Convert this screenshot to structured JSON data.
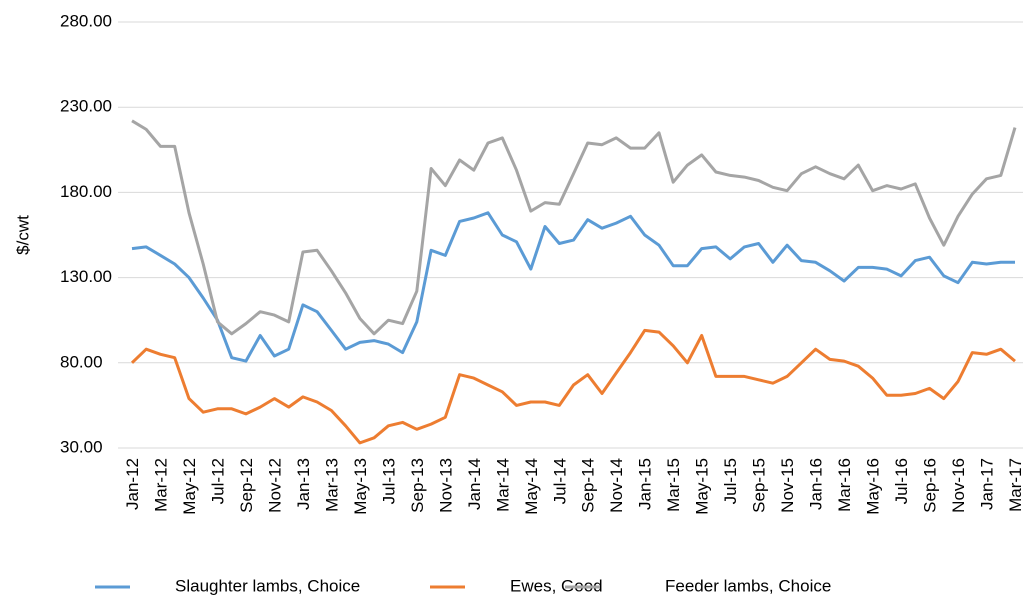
{
  "chart_data": {
    "type": "line",
    "y_label": "$/cwt",
    "categories": [
      "Jan-12",
      null,
      "Mar-12",
      null,
      "May-12",
      null,
      "Jul-12",
      null,
      "Sep-12",
      null,
      "Nov-12",
      null,
      "Jan-13",
      null,
      "Mar-13",
      null,
      "May-13",
      null,
      "Jul-13",
      null,
      "Sep-13",
      null,
      "Nov-13",
      null,
      "Jan-14",
      null,
      "Mar-14",
      null,
      "May-14",
      null,
      "Jul-14",
      null,
      "Sep-14",
      null,
      "Nov-14",
      null,
      "Jan-15",
      null,
      "Mar-15",
      null,
      "May-15",
      null,
      "Jul-15",
      null,
      "Sep-15",
      null,
      "Nov-15",
      null,
      "Jan-16",
      null,
      "Mar-16",
      null,
      "May-16",
      null,
      "Jul-16",
      null,
      "Sep-16",
      null,
      "Nov-16",
      null,
      "Jan-17",
      null,
      "Mar-17"
    ],
    "series": [
      {
        "name": "Slaughter lambs, Choice",
        "color": "#5b9bd5",
        "values": [
          147,
          148,
          143,
          138,
          130,
          118,
          105,
          83,
          81,
          96,
          84,
          88,
          114,
          110,
          99,
          88,
          92,
          93,
          91,
          86,
          104,
          146,
          143,
          163,
          165,
          168,
          155,
          151,
          135,
          160,
          150,
          152,
          164,
          159,
          162,
          166,
          155,
          149,
          137,
          137,
          147,
          148,
          141,
          148,
          150,
          139,
          149,
          140,
          139,
          134,
          128,
          136,
          136,
          135,
          131,
          140,
          142,
          131,
          127,
          139,
          138,
          139,
          139
        ]
      },
      {
        "name": "Ewes, Good",
        "color": "#ed7d31",
        "values": [
          80,
          88,
          85,
          83,
          59,
          51,
          53,
          53,
          50,
          54,
          59,
          54,
          60,
          57,
          52,
          43,
          33,
          36,
          43,
          45,
          41,
          44,
          48,
          73,
          71,
          67,
          63,
          55,
          57,
          57,
          55,
          67,
          73,
          62,
          74,
          86,
          99,
          98,
          90,
          80,
          96,
          72,
          72,
          72,
          70,
          68,
          72,
          80,
          88,
          82,
          81,
          78,
          71,
          61,
          61,
          62,
          65,
          59,
          69,
          86,
          85,
          88,
          81
        ]
      },
      {
        "name": "Feeder lambs, Choice",
        "color": "#a5a5a5",
        "values": [
          222,
          217,
          207,
          207,
          168,
          138,
          104,
          97,
          103,
          110,
          108,
          104,
          145,
          146,
          134,
          121,
          106,
          97,
          105,
          103,
          122,
          194,
          184,
          199,
          193,
          209,
          212,
          193,
          169,
          174,
          173,
          191,
          209,
          208,
          212,
          206,
          206,
          215,
          186,
          196,
          202,
          192,
          190,
          189,
          187,
          183,
          181,
          191,
          195,
          191,
          188,
          196,
          181,
          184,
          182,
          185,
          165,
          149,
          166,
          179,
          188,
          190,
          218
        ]
      }
    ],
    "ylim": [
      30,
      280
    ],
    "yticks": [
      {
        "value": 30,
        "label": "30.00"
      },
      {
        "value": 80,
        "label": "80.00"
      },
      {
        "value": 130,
        "label": "130.00"
      },
      {
        "value": 180,
        "label": "180.00"
      },
      {
        "value": 230,
        "label": "230.00"
      },
      {
        "value": 280,
        "label": "280.00"
      }
    ],
    "grid": true,
    "legend": "bottom"
  }
}
